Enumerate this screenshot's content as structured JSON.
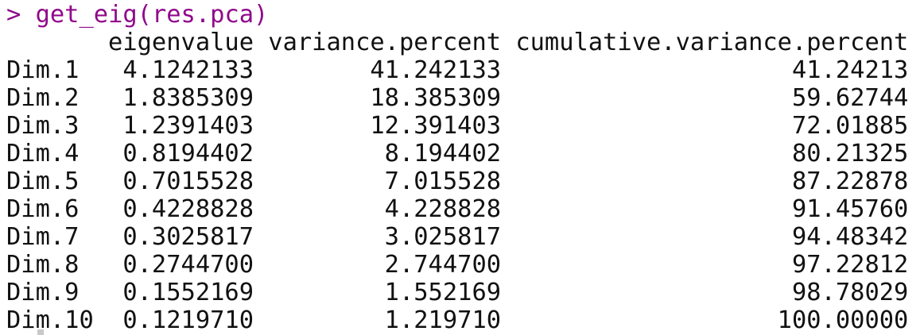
{
  "colors": {
    "background": "#ffffff",
    "text_color": "#111111",
    "prompt_color": "#90098b",
    "caret_color": "#c9c9c9"
  },
  "console": {
    "prompt_line": "> get_eig(res.pca)"
  },
  "table": {
    "headers": {
      "eigenvalue": "eigenvalue",
      "variance_percent": "variance.percent",
      "cumulative_variance_percent": "cumulative.variance.percent"
    },
    "rows": [
      {
        "name": "Dim.1",
        "eigenvalue": "4.1242133",
        "variance_percent": "41.242133",
        "cumulative_variance_percent": "41.24213"
      },
      {
        "name": "Dim.2",
        "eigenvalue": "1.8385309",
        "variance_percent": "18.385309",
        "cumulative_variance_percent": "59.62744"
      },
      {
        "name": "Dim.3",
        "eigenvalue": "1.2391403",
        "variance_percent": "12.391403",
        "cumulative_variance_percent": "72.01885"
      },
      {
        "name": "Dim.4",
        "eigenvalue": "0.8194402",
        "variance_percent": "8.194402",
        "cumulative_variance_percent": "80.21325"
      },
      {
        "name": "Dim.5",
        "eigenvalue": "0.7015528",
        "variance_percent": "7.015528",
        "cumulative_variance_percent": "87.22878"
      },
      {
        "name": "Dim.6",
        "eigenvalue": "0.4228828",
        "variance_percent": "4.228828",
        "cumulative_variance_percent": "91.45760"
      },
      {
        "name": "Dim.7",
        "eigenvalue": "0.3025817",
        "variance_percent": "3.025817",
        "cumulative_variance_percent": "94.48342"
      },
      {
        "name": "Dim.8",
        "eigenvalue": "0.2744700",
        "variance_percent": "2.744700",
        "cumulative_variance_percent": "97.22812"
      },
      {
        "name": "Dim.9",
        "eigenvalue": "0.1552169",
        "variance_percent": "1.552169",
        "cumulative_variance_percent": "98.78029"
      },
      {
        "name": "Dim.10",
        "eigenvalue": "0.1219710",
        "variance_percent": "1.219710",
        "cumulative_variance_percent": "100.00000"
      }
    ]
  }
}
